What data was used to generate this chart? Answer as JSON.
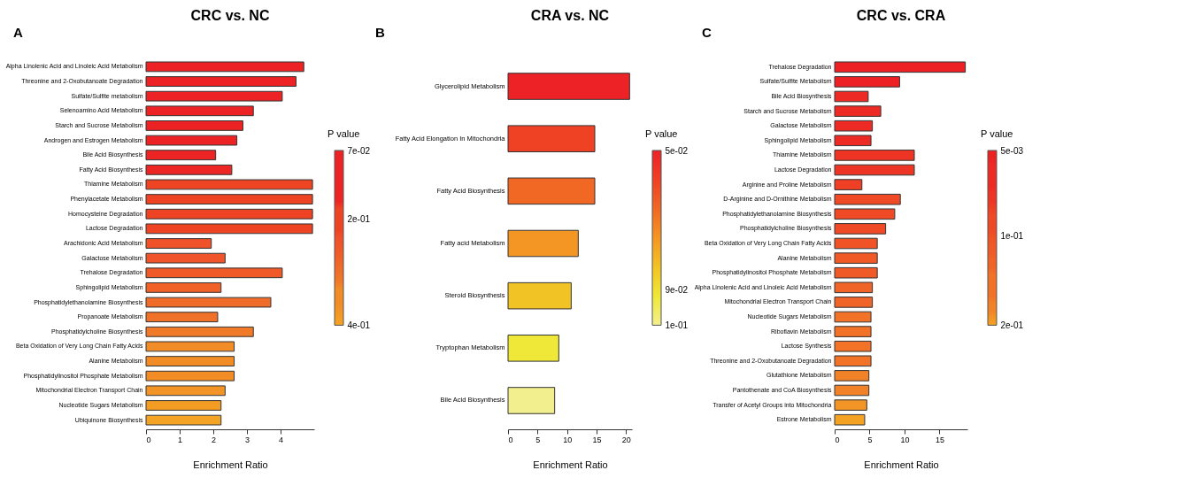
{
  "chart_data": [
    {
      "type": "bar",
      "orientation": "horizontal",
      "title": "CRC vs. NC",
      "xlabel": "Enrichment Ratio",
      "annotations": [
        "A"
      ],
      "grid": false,
      "categories": [
        "Alpha Linolenic Acid and Linoleic Acid Metabolism",
        "Threonine and 2-Oxobutanoate Degradation",
        "Sulfate/Sulfite metabolism",
        "Selenoamino Acid Metabolism",
        "Starch and Sucrose Metabolism",
        "Androgen and Estrogen Metabolism",
        "Bile Acid Biosynthesis",
        "Fatty Acid Biosynthesis",
        "Thiamine Metabolism",
        "Phenylacetate Metabolism",
        "Homocysteine Degradation",
        "Lactose Degradation",
        "Arachidonic Acid Metabolism",
        "Galactose Metabolism",
        "Trehalose Degradation",
        "Sphingolipid Metabolism",
        "Phosphatidylethanolamine Biosynthesis",
        "Propanoate Metabolism",
        "Phosphatidylcholine Biosynthesis",
        "Beta Oxidation of Very Long Chain Fatty Acids",
        "Alanine Metabolism",
        "Phosphatidylinositol Phosphate Metabolism",
        "Mitochondrial Electron Transport Chain",
        "Nucleotide Sugars Metabolism",
        "Ubiquinone Biosynthesis"
      ],
      "values": [
        4.69,
        4.46,
        4.05,
        3.19,
        2.88,
        2.7,
        2.07,
        2.55,
        4.95,
        4.95,
        4.95,
        4.95,
        1.94,
        2.35,
        4.05,
        2.23,
        3.71,
        2.13,
        3.19,
        2.62,
        2.62,
        2.62,
        2.35,
        2.23,
        2.23
      ],
      "colors": [
        "#ed2224",
        "#ed2224",
        "#ed2224",
        "#ed2224",
        "#ed2224",
        "#ed2224",
        "#ed2424",
        "#ed2624",
        "#ef4424",
        "#ef4424",
        "#ef4424",
        "#ef4424",
        "#f0522a",
        "#f0542a",
        "#f05a28",
        "#f06228",
        "#f06a28",
        "#f07228",
        "#f17a28",
        "#f28c26",
        "#f28c26",
        "#f28c26",
        "#f29426",
        "#f39c24",
        "#f4a424"
      ],
      "xlim": [
        0,
        5
      ],
      "xticks": [
        0,
        1,
        2,
        3,
        4
      ],
      "clabel": "P value",
      "clim": [
        0.4,
        0.07
      ],
      "cticks": [
        {
          "value": 0.07,
          "label": "7e-02"
        },
        {
          "value": 0.2,
          "label": "2e-01"
        },
        {
          "value": 0.4,
          "label": "4e-01"
        }
      ]
    },
    {
      "type": "bar",
      "orientation": "horizontal",
      "title": "CRA vs. NC",
      "xlabel": "Enrichment Ratio",
      "annotations": [
        "B"
      ],
      "grid": false,
      "categories": [
        "Glycerolipid Metabolism",
        "Fatty Acid Elongation In Mitochondria",
        "Fatty Acid Biosynthesis",
        "Fatty acid Metabolism",
        "Steroid Biosynthesis",
        "Tryptophan Metabolism",
        "Bile Acid Biosynthesis"
      ],
      "values": [
        20.6,
        14.7,
        14.7,
        11.9,
        10.7,
        8.6,
        7.9
      ],
      "colors": [
        "#ec2227",
        "#ef4124",
        "#f06824",
        "#f49623",
        "#f2c325",
        "#efe838",
        "#f2ef8f"
      ],
      "xlim": [
        0,
        21
      ],
      "xticks": [
        0,
        5,
        10,
        15,
        20
      ],
      "clabel": "P value",
      "clim": [
        0.1,
        0.05
      ],
      "cticks": [
        {
          "value": 0.05,
          "label": "5e-02"
        },
        {
          "value": 0.09,
          "label": "9e-02"
        },
        {
          "value": 0.1,
          "label": "1e-01"
        }
      ]
    },
    {
      "type": "bar",
      "orientation": "horizontal",
      "title": "CRC vs. CRA",
      "xlabel": "Enrichment Ratio",
      "annotations": [
        "C"
      ],
      "grid": false,
      "categories": [
        "Trehalose Degradation",
        "Sulfate/Sulfite Metabolism",
        "Bile Acid Biosynthesis",
        "Starch and Sucrose Metabolism",
        "Galactose Metabolism",
        "Sphingolipid Metabolism",
        "Thiamine Metabolism",
        "Lactose Degradation",
        "Arginine and Proline Metabolism",
        "D-Arginine and D-Ornithine Metabolism",
        "Phosphatidylethanolamine Biosynthesis",
        "Phosphatidylcholine Biosynthesis",
        "Beta Oxidation of Very Long Chain Fatty Acids",
        "Alanine Metabolism",
        "Phosphatidylinositol Phosphate Metabolism",
        "Alpha Linolenic Acid and Linoleic Acid Metabolism",
        "Mitochondrial Electron Transport Chain",
        "Nucleotide Sugars Metabolism",
        "Riboflavin Metabolism",
        "Lactose Synthesis",
        "Threonine and 2-Oxobutanoate Degradation",
        "Glutathione Metabolism",
        "Pantothenate and CoA Biosynthesis",
        "Transfer of Acetyl Groups into Mitochondria",
        "Estrone Metabolism"
      ],
      "values": [
        18.7,
        9.3,
        4.8,
        6.6,
        5.4,
        5.2,
        11.4,
        11.4,
        3.9,
        9.4,
        8.6,
        7.3,
        6.1,
        6.1,
        6.1,
        5.4,
        5.4,
        5.2,
        5.2,
        5.2,
        5.2,
        4.9,
        4.9,
        4.6,
        4.3
      ],
      "colors": [
        "#ed2024",
        "#ed2024",
        "#ee2a25",
        "#ee2a25",
        "#ee2a25",
        "#ee2a25",
        "#ee3525",
        "#ee3525",
        "#ef4025",
        "#ef4a25",
        "#ef4a25",
        "#ef4a25",
        "#f05325",
        "#f05a26",
        "#f05a26",
        "#f06427",
        "#f06427",
        "#f27228",
        "#f27228",
        "#f27228",
        "#f27228",
        "#f28228",
        "#f28228",
        "#f39426",
        "#f4a224"
      ],
      "xlim": [
        0,
        19
      ],
      "xticks": [
        0,
        5,
        10,
        15
      ],
      "clabel": "P value",
      "clim": [
        0.2,
        0.005
      ],
      "cticks": [
        {
          "value": 0.005,
          "label": "5e-03"
        },
        {
          "value": 0.1,
          "label": "1e-01"
        },
        {
          "value": 0.2,
          "label": "2e-01"
        }
      ]
    }
  ]
}
